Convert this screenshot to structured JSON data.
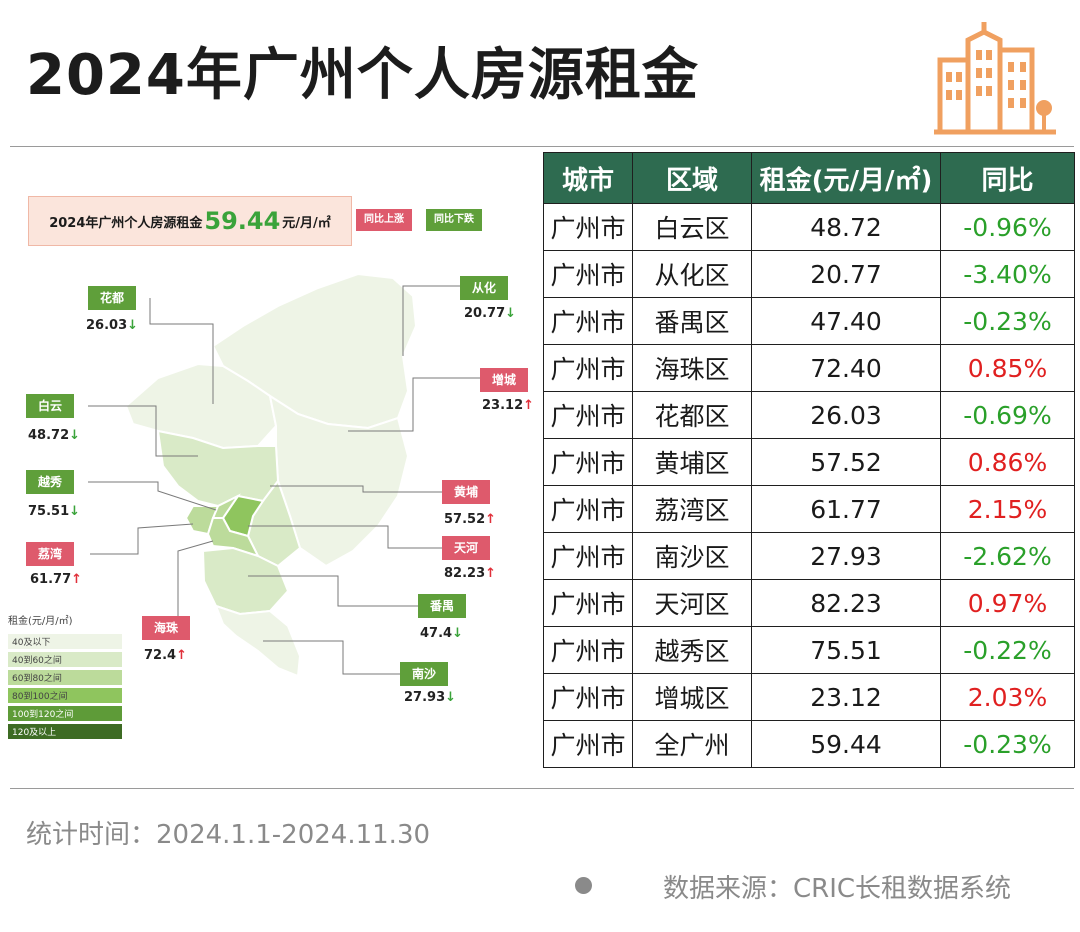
{
  "header": {
    "title": "2024年广州个人房源租金"
  },
  "map_panel": {
    "summary_prefix": "2024年广州个人房源租金",
    "summary_value": "59.44",
    "summary_unit": "元/月/㎡",
    "legend_up": "同比上涨",
    "legend_down": "同比下跌",
    "legend_title": "租金(元/月/㎡)",
    "legend_items": [
      {
        "label": "40及以下",
        "color": "#eef4e6"
      },
      {
        "label": "40到60之间",
        "color": "#d9eac7"
      },
      {
        "label": "60到80之间",
        "color": "#bcdb9b"
      },
      {
        "label": "80到100之间",
        "color": "#8fc55e"
      },
      {
        "label": "100到120之间",
        "color": "#5e9b38"
      },
      {
        "label": "120及以上",
        "color": "#3d6b23"
      }
    ],
    "districts": [
      {
        "name": "花都",
        "value": "26.03",
        "arrow": "↓",
        "trend": "down"
      },
      {
        "name": "从化",
        "value": "20.77",
        "arrow": "↓",
        "trend": "down"
      },
      {
        "name": "增城",
        "value": "23.12",
        "arrow": "↑",
        "trend": "up"
      },
      {
        "name": "白云",
        "value": "48.72",
        "arrow": "↓",
        "trend": "down"
      },
      {
        "name": "越秀",
        "value": "75.51",
        "arrow": "↓",
        "trend": "down"
      },
      {
        "name": "黄埔",
        "value": "57.52",
        "arrow": "↑",
        "trend": "up"
      },
      {
        "name": "荔湾",
        "value": "61.77",
        "arrow": "↑",
        "trend": "up"
      },
      {
        "name": "天河",
        "value": "82.23",
        "arrow": "↑",
        "trend": "up"
      },
      {
        "name": "番禺",
        "value": "47.4",
        "arrow": "↓",
        "trend": "down"
      },
      {
        "name": "海珠",
        "value": "72.4",
        "arrow": "↑",
        "trend": "up"
      },
      {
        "name": "南沙",
        "value": "27.93",
        "arrow": "↓",
        "trend": "down"
      }
    ]
  },
  "table": {
    "headers": [
      "城市",
      "区域",
      "租金(元/月/㎡)",
      "同比"
    ],
    "rows": [
      {
        "city": "广州市",
        "district": "白云区",
        "rent": "48.72",
        "yoy": "-0.96%"
      },
      {
        "city": "广州市",
        "district": "从化区",
        "rent": "20.77",
        "yoy": "-3.40%"
      },
      {
        "city": "广州市",
        "district": "番禺区",
        "rent": "47.40",
        "yoy": "-0.23%"
      },
      {
        "city": "广州市",
        "district": "海珠区",
        "rent": "72.40",
        "yoy": "0.85%"
      },
      {
        "city": "广州市",
        "district": "花都区",
        "rent": "26.03",
        "yoy": "-0.69%"
      },
      {
        "city": "广州市",
        "district": "黄埔区",
        "rent": "57.52",
        "yoy": "0.86%"
      },
      {
        "city": "广州市",
        "district": "荔湾区",
        "rent": "61.77",
        "yoy": "2.15%"
      },
      {
        "city": "广州市",
        "district": "南沙区",
        "rent": "27.93",
        "yoy": "-2.62%"
      },
      {
        "city": "广州市",
        "district": "天河区",
        "rent": "82.23",
        "yoy": "0.97%"
      },
      {
        "city": "广州市",
        "district": "越秀区",
        "rent": "75.51",
        "yoy": "-0.22%"
      },
      {
        "city": "广州市",
        "district": "增城区",
        "rent": "23.12",
        "yoy": "2.03%"
      },
      {
        "city": "广州市",
        "district": "全广州",
        "rent": "59.44",
        "yoy": "-0.23%"
      }
    ]
  },
  "chart_data": {
    "type": "table",
    "title": "2024年广州个人房源租金",
    "columns": [
      "城市",
      "区域",
      "租金(元/月/㎡)",
      "同比"
    ],
    "categories": [
      "白云区",
      "从化区",
      "番禺区",
      "海珠区",
      "花都区",
      "黄埔区",
      "荔湾区",
      "南沙区",
      "天河区",
      "越秀区",
      "增城区",
      "全广州"
    ],
    "series": [
      {
        "name": "租金(元/月/㎡)",
        "values": [
          48.72,
          20.77,
          47.4,
          72.4,
          26.03,
          57.52,
          61.77,
          27.93,
          82.23,
          75.51,
          23.12,
          59.44
        ]
      },
      {
        "name": "同比",
        "values": [
          -0.96,
          -3.4,
          -0.23,
          0.85,
          -0.69,
          0.86,
          2.15,
          -2.62,
          0.97,
          -0.22,
          2.03,
          -0.23
        ]
      }
    ]
  },
  "colors": {
    "header_bg": "#2e6b50",
    "positive": "#e02020",
    "negative": "#2aa02a",
    "tag_up": "#de5a6c",
    "tag_down": "#5f9f3a",
    "logo": "#f0a060"
  },
  "footer": {
    "period": "统计时间：2024.1.1-2024.11.30",
    "source": "数据来源：CRIC长租数据系统"
  }
}
